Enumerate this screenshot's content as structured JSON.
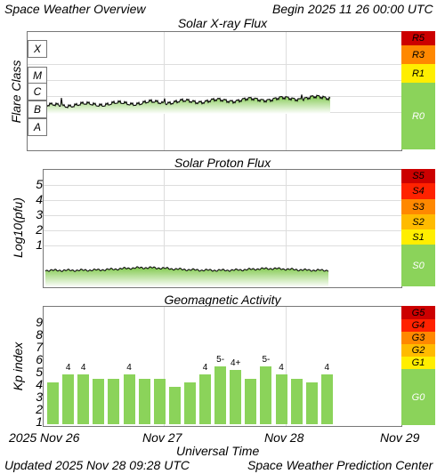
{
  "header": {
    "title": "Space Weather Overview",
    "begin_label": "Begin",
    "begin_value": "2025 11 26 00:00 UTC"
  },
  "xray": {
    "title": "Solar X-ray Flux",
    "axis_title": "Flare Class",
    "classes": [
      "X",
      "M",
      "C",
      "B",
      "A"
    ],
    "scale": [
      {
        "label": "R5",
        "color": "#cc0000"
      },
      {
        "label": "R3",
        "color": "#ff8800"
      },
      {
        "label": "R1",
        "color": "#ffee00"
      },
      {
        "label": "R0",
        "color": "#8bd35a"
      }
    ]
  },
  "proton": {
    "title": "Solar Proton Flux",
    "axis_title": "Log10(pfu)",
    "ticks": [
      "5",
      "4",
      "3",
      "2",
      "1"
    ],
    "scale": [
      {
        "label": "S5",
        "color": "#cc0000"
      },
      {
        "label": "S4",
        "color": "#ff2200"
      },
      {
        "label": "S3",
        "color": "#ff8800"
      },
      {
        "label": "S2",
        "color": "#ffbb00"
      },
      {
        "label": "S1",
        "color": "#ffee00"
      },
      {
        "label": "S0",
        "color": "#8bd35a"
      }
    ]
  },
  "geomag": {
    "title": "Geomagnetic Activity",
    "axis_title": "Kp index",
    "ticks": [
      "9",
      "8",
      "7",
      "6",
      "5",
      "4",
      "3",
      "2",
      "1"
    ],
    "scale": [
      {
        "label": "G5",
        "color": "#cc0000"
      },
      {
        "label": "G4",
        "color": "#ff2200"
      },
      {
        "label": "G3",
        "color": "#ff8800"
      },
      {
        "label": "G2",
        "color": "#ffbb00"
      },
      {
        "label": "G1",
        "color": "#ffee00"
      },
      {
        "label": "G0",
        "color": "#8bd35a"
      }
    ],
    "kp_values": [
      3.33,
      4,
      4,
      3.67,
      3.67,
      4,
      3.67,
      3.67,
      3,
      3.33,
      4,
      4.67,
      4.33,
      3.67,
      4.67,
      4,
      3.67,
      3.33,
      4
    ],
    "kp_labels": [
      "",
      "4",
      "4",
      "",
      "",
      "4",
      "",
      "",
      "",
      "",
      "4",
      "5-",
      "4+",
      "",
      "5-",
      "4",
      "",
      "",
      "4"
    ]
  },
  "xaxis": {
    "ticks": [
      "2025 Nov 26",
      "Nov 27",
      "Nov 28",
      "Nov 29"
    ],
    "title": "Universal Time"
  },
  "footer": {
    "updated_label": "Updated",
    "updated_value": "2025 Nov 28 09:28 UTC",
    "source": "Space Weather Prediction Center"
  }
}
